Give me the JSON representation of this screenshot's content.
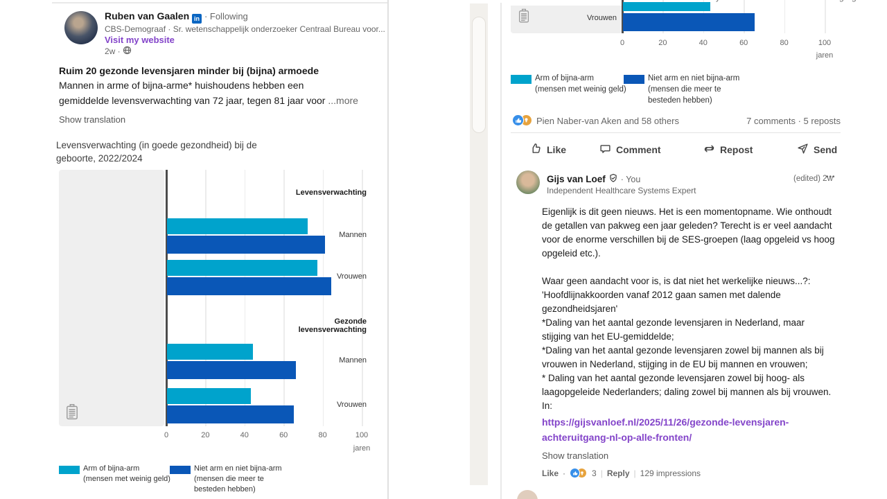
{
  "left_post": {
    "author": {
      "name": "Ruben van Gaalen",
      "linkedin_badge": "in",
      "following": "· Following",
      "headline": "CBS-Demograaf · Sr. wetenschappelijk onderzoeker Centraal Bureau voor...",
      "website_link": "Visit my website",
      "time": "2w ·"
    },
    "title": "Ruim 20 gezonde levensjaren minder bij (bijna) armoede",
    "body": "Mannen in arme of bijna-arme* huishoudens hebben een\ngemiddelde levensverwachting van 72 jaar, tegen 81 jaar voor",
    "more_label": "...more",
    "show_translation": "Show translation"
  },
  "chart_data": {
    "type": "bar",
    "orientation": "horizontal",
    "title": "Levensverwachting (in goede gezondheid) bij de\ngeboorte, 2022/2024",
    "xlabel": "jaren",
    "xlim": [
      0,
      100
    ],
    "xticks": [
      0,
      20,
      40,
      60,
      80,
      100
    ],
    "grid": "vertical",
    "legend_position": "bottom",
    "groups": [
      {
        "header": "Levensverwachting",
        "rows": [
          {
            "label": "Mannen",
            "arm": 72,
            "niet_arm": 81
          },
          {
            "label": "Vrouwen",
            "arm": 77,
            "niet_arm": 84
          }
        ]
      },
      {
        "header": "Gezonde levensverwachting",
        "rows": [
          {
            "label": "Mannen",
            "arm": 44,
            "niet_arm": 66
          },
          {
            "label": "Vrouwen",
            "arm": 43,
            "niet_arm": 65
          }
        ]
      }
    ],
    "series": [
      {
        "name": "Arm of bijna-arm\n(mensen met weinig geld)",
        "color": "#00a3cc"
      },
      {
        "name": "Niet arm en niet bijna-arm\n(mensen die meer te\nbesteden hebben)",
        "color": "#0a57b7"
      }
    ]
  },
  "right_post": {
    "cropped_top_fragments": [
      "y",
      "g",
      "g"
    ],
    "social": {
      "reactors": "Pien Naber-van Aken and 58 others",
      "counts": "7 comments · 5 reposts"
    },
    "actions": {
      "like": "Like",
      "comment": "Comment",
      "repost": "Repost",
      "send": "Send"
    },
    "comment": {
      "author": "Gijs van Loef",
      "you_label": "· You",
      "headline": "Independent Healthcare Systems Expert",
      "edited": "(edited) 2w",
      "menu": "•••",
      "body": "Eigenlijk is dit geen nieuws. Het is een momentopname. Wie onthoudt\nde getallen van pakweg een jaar geleden? Terecht is er veel aandacht\nvoor de enorme verschillen bij de SES-groepen (laag opgeleid vs hoog\nopgeleid etc.).\n\nWaar geen aandacht voor is, is dat niet het werkelijke nieuws...?:\n'Hoofdlijnakkoorden vanaf 2012 gaan samen met dalende\ngezondheidsjaren'\n*Daling van het aantal gezonde levensjaren in Nederland, maar\nstijging van het EU-gemiddelde;\n*Daling van het aantal gezonde levensjaren zowel bij mannen als bij\nvrouwen in Nederland, stijging in de EU bij mannen en vrouwen;\n* Daling van het aantal gezonde levensjaren zowel bij hoog- als\nlaagopgeleide Nederlanders; daling zowel bij mannen als bij vrouwen.\nIn:",
      "link": "https://gijsvanloef.nl/2025/11/26/gezonde-levensjaren-achteruitgang-nl-op-alle-fronten/",
      "show_translation": "Show translation",
      "footer": {
        "like": "Like",
        "dot": "·",
        "count": "3",
        "reply": "Reply",
        "impressions": "129 impressions"
      }
    }
  }
}
